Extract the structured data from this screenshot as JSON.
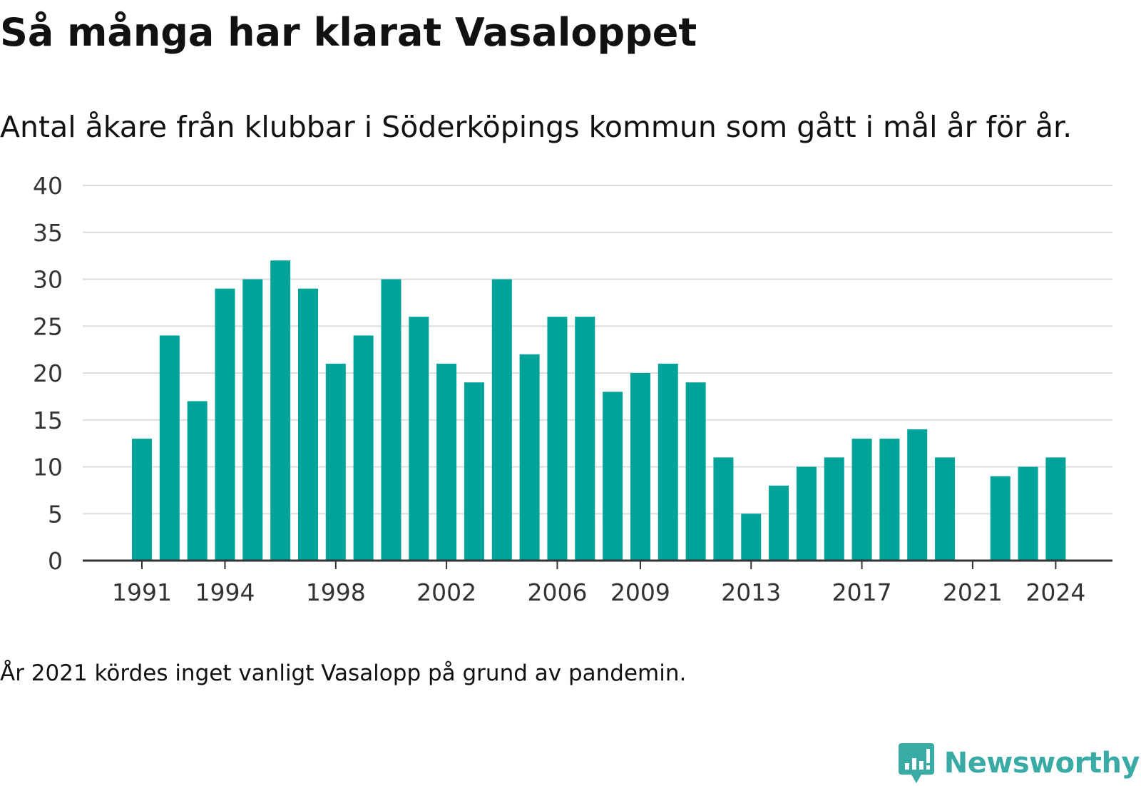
{
  "title": "Så många har klarat Vasaloppet",
  "subtitle": "Antal åkare från klubbar i Söderköpings kommun som gått i mål år för år.",
  "footnote": "År 2021 kördes inget vanligt Vasalopp på grund av pandemin.",
  "brand": {
    "name": "Newsworthy",
    "color": "#3aaaa4",
    "icon": "newsworthy-logo-icon"
  },
  "colors": {
    "bar": "#00a39a",
    "grid": "#dddddd",
    "axis": "#333333"
  },
  "chart_data": {
    "type": "bar",
    "categories": [
      1991,
      1992,
      1993,
      1994,
      1995,
      1996,
      1997,
      1998,
      1999,
      2000,
      2001,
      2002,
      2003,
      2004,
      2005,
      2006,
      2007,
      2008,
      2009,
      2010,
      2011,
      2012,
      2013,
      2014,
      2015,
      2016,
      2017,
      2018,
      2019,
      2020,
      2021,
      2022,
      2023,
      2024
    ],
    "values": [
      13,
      24,
      17,
      29,
      30,
      32,
      29,
      21,
      24,
      30,
      26,
      21,
      19,
      30,
      22,
      26,
      26,
      18,
      20,
      21,
      19,
      11,
      5,
      8,
      10,
      11,
      13,
      13,
      14,
      11,
      null,
      9,
      10,
      11
    ],
    "x_tick_labels": [
      "1991",
      "1994",
      "1998",
      "2002",
      "2006",
      "2009",
      "2013",
      "2017",
      "2021",
      "2024"
    ],
    "y_ticks": [
      0,
      5,
      10,
      15,
      20,
      25,
      30,
      35,
      40
    ],
    "ylim": [
      0,
      40
    ],
    "grid": true,
    "legend": "none"
  }
}
